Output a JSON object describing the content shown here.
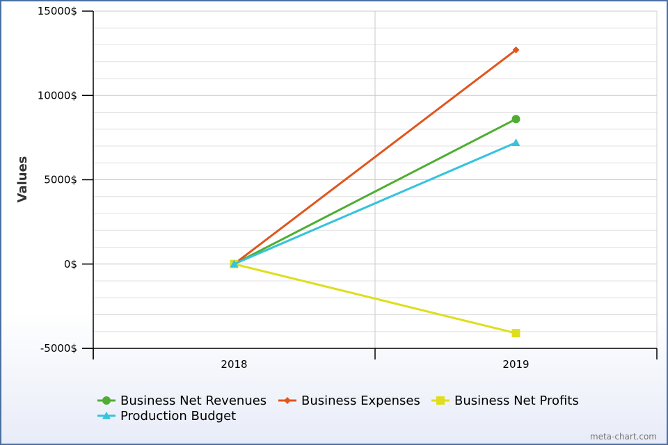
{
  "chart_data": {
    "type": "line",
    "title": "",
    "xlabel": "",
    "ylabel": "Values",
    "categories": [
      "2018",
      "2019"
    ],
    "ylim": [
      -5000,
      15000
    ],
    "yticks": [
      "15000$",
      "10000$",
      "5000$",
      "0$",
      "-5000$"
    ],
    "grid": true,
    "legend_position": "bottom",
    "series": [
      {
        "name": "Business Net Revenues",
        "values": [
          0,
          8600
        ],
        "color": "#4fae32",
        "marker": "circle"
      },
      {
        "name": "Business Expenses",
        "values": [
          0,
          12700
        ],
        "color": "#e0561e",
        "marker": "diamond"
      },
      {
        "name": "Business Net Profits",
        "values": [
          0,
          -4100
        ],
        "color": "#dede1e",
        "marker": "square"
      },
      {
        "name": "Production Budget",
        "values": [
          0,
          7200
        ],
        "color": "#36c3dc",
        "marker": "triangle"
      }
    ]
  },
  "credit": "meta-chart.com"
}
